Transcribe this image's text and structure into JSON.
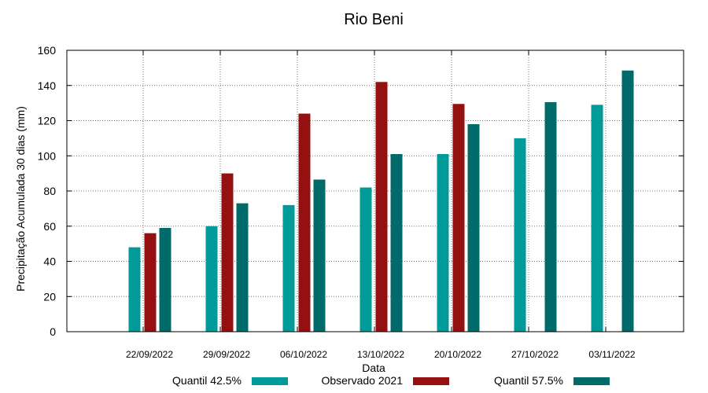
{
  "chart_data": {
    "type": "bar",
    "title": "Rio Beni",
    "xlabel": "Data",
    "ylabel": "Precipitação Acumulada 30 dias (mm)",
    "ylim": [
      0,
      160
    ],
    "yticks": [
      0,
      20,
      40,
      60,
      80,
      100,
      120,
      140,
      160
    ],
    "grid": true,
    "legend_position": "bottom",
    "categories": [
      "22/09/2022",
      "29/09/2022",
      "06/10/2022",
      "13/10/2022",
      "20/10/2022",
      "27/10/2022",
      "03/11/2022"
    ],
    "series": [
      {
        "name": "Quantil 42.5%",
        "color": "#009b98",
        "values": [
          48,
          60,
          72,
          82,
          101,
          110,
          129
        ]
      },
      {
        "name": "Observado 2021",
        "color": "#951010",
        "values": [
          56,
          90,
          124,
          142,
          129.5,
          null,
          null
        ]
      },
      {
        "name": "Quantil 57.5%",
        "color": "#006b6a",
        "values": [
          59,
          73,
          86.5,
          101,
          118,
          130.5,
          148.5
        ]
      }
    ]
  }
}
